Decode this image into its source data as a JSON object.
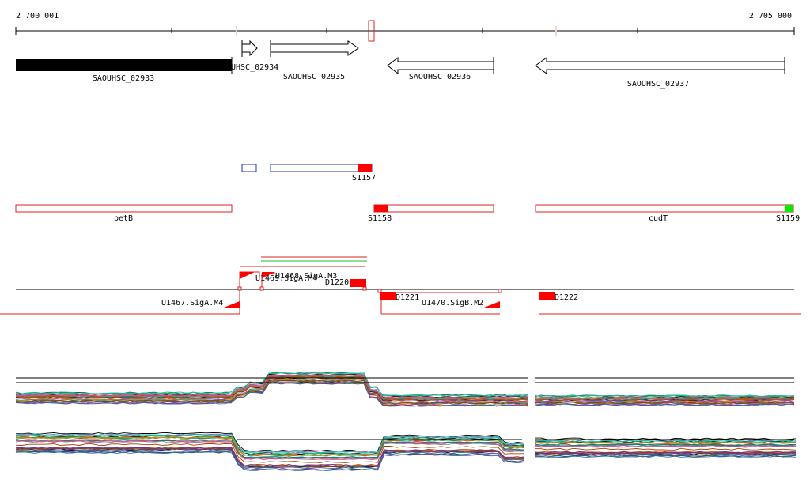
{
  "colors": {
    "background": "#ffffff",
    "gene_fill_black": "#000000",
    "outline_red": "#dd2222",
    "outline_blue": "#2233cc",
    "mark_red": "#ff0000",
    "mark_green": "#00ee00",
    "line_green": "#22bb22"
  },
  "ruler": {
    "start_label": "2 700 001",
    "end_label": "2 705 000"
  },
  "genes": [
    {
      "label": "SAOUHSC_02933",
      "strand": "forward",
      "style": "filled"
    },
    {
      "label": "UHSC_02934",
      "strand": "forward",
      "style": "outline"
    },
    {
      "label": "SAOUHSC_02935",
      "strand": "forward",
      "style": "outline"
    },
    {
      "label": "SAOUHSC_02936",
      "strand": "reverse",
      "style": "outline"
    },
    {
      "label": "SAOUHSC_02937",
      "strand": "reverse",
      "style": "outline"
    }
  ],
  "segments_s": [
    {
      "label": "S1157"
    },
    {
      "label": "S1158"
    },
    {
      "label": "S1159"
    }
  ],
  "annotations": [
    {
      "label": "betB"
    },
    {
      "label": "cudT"
    }
  ],
  "promoters": [
    {
      "label": "U1467.SigA.M4"
    },
    {
      "label": "U1468.SigA.M3"
    },
    {
      "label": "U1469.SigA.M4"
    },
    {
      "label": "U1470.SigB.M2"
    }
  ],
  "terminators": [
    {
      "label": "D1220"
    },
    {
      "label": "D1221"
    },
    {
      "label": "D1222"
    }
  ]
}
